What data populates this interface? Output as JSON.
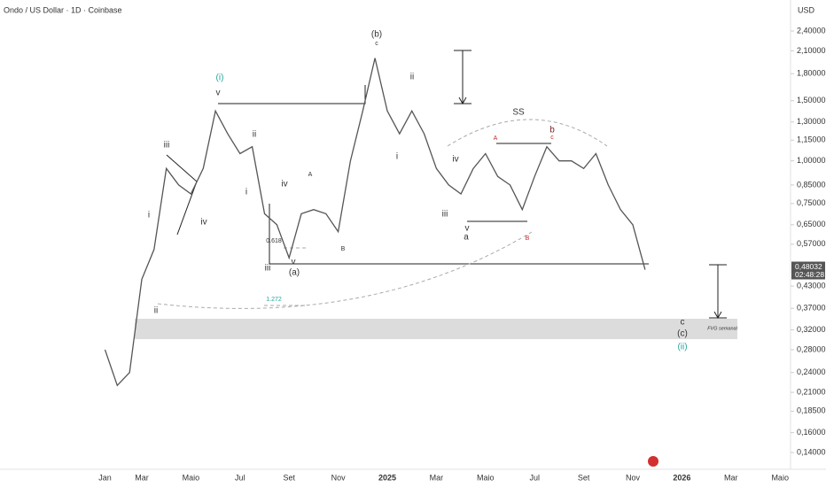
{
  "chart_data": {
    "type": "line",
    "title": "Ondo / US Dollar · 1D · Coinbase",
    "currency": "USD",
    "log_scale": true,
    "color": "#555555",
    "categories": [
      "Jan",
      null,
      null,
      "Mar",
      null,
      null,
      null,
      "Maio",
      null,
      null,
      null,
      "Jul",
      null,
      null,
      null,
      "Set",
      null,
      null,
      null,
      "Nov",
      null,
      null,
      null,
      "2025",
      null,
      null,
      null,
      "Mar",
      null,
      null,
      null,
      "Maio",
      null,
      null,
      null,
      "Jul",
      null,
      null,
      null,
      "Set",
      null,
      null,
      null,
      "Nov",
      null,
      null,
      null,
      "2026",
      null,
      null,
      null,
      "Mar",
      null,
      null,
      null,
      "Maio",
      null
    ],
    "values": [
      0.28,
      0.22,
      0.24,
      0.45,
      0.55,
      0.95,
      0.85,
      0.8,
      0.95,
      1.4,
      1.2,
      1.05,
      1.1,
      0.7,
      0.65,
      0.52,
      0.7,
      0.72,
      0.7,
      0.62,
      1.0,
      1.4,
      2.0,
      1.4,
      1.2,
      1.4,
      1.2,
      0.95,
      0.85,
      0.8,
      0.95,
      1.05,
      0.9,
      0.85,
      0.72,
      0.9,
      1.1,
      1.0,
      1.0,
      0.95,
      1.05,
      0.85,
      0.72,
      0.65,
      0.48,
      null,
      null,
      null,
      null,
      null,
      null,
      null,
      null,
      null,
      null,
      null,
      null
    ],
    "ylim": [
      0.125,
      2.625
    ],
    "yticks": [
      {
        "value": 2.4,
        "label": "2,40000"
      },
      {
        "value": 2.1,
        "label": "2,10000"
      },
      {
        "value": 1.8,
        "label": "1,80000"
      },
      {
        "value": 1.5,
        "label": "1,50000"
      },
      {
        "value": 1.3,
        "label": "1,30000"
      },
      {
        "value": 1.15,
        "label": "1,15000"
      },
      {
        "value": 1.0,
        "label": "1,00000"
      },
      {
        "value": 0.85,
        "label": "0,85000"
      },
      {
        "value": 0.75,
        "label": "0,75000"
      },
      {
        "value": 0.65,
        "label": "0,65000"
      },
      {
        "value": 0.57,
        "label": "0,57000"
      },
      {
        "value": 0.43,
        "label": "0,43000"
      },
      {
        "value": 0.37,
        "label": "0,37000"
      },
      {
        "value": 0.32,
        "label": "0,32000"
      },
      {
        "value": 0.28,
        "label": "0,28000"
      },
      {
        "value": 0.24,
        "label": "0,24000"
      },
      {
        "value": 0.21,
        "label": "0,21000"
      },
      {
        "value": 0.185,
        "label": "0,18500"
      },
      {
        "value": 0.16,
        "label": "0,16000"
      },
      {
        "value": 0.14,
        "label": "0,14000"
      }
    ],
    "last_price": {
      "value": 0.48032,
      "label": "0,48032"
    },
    "countdown": "02:48:28",
    "annotations": [
      {
        "text": "(i)",
        "color": "#26a69a"
      },
      {
        "text": "v",
        "color": "#333333"
      },
      {
        "text": "iii",
        "color": "#333333"
      },
      {
        "text": "ii",
        "color": "#333333"
      },
      {
        "text": "i",
        "color": "#333333"
      },
      {
        "text": "iv",
        "color": "#333333"
      },
      {
        "text": "ii",
        "color": "#333333"
      },
      {
        "text": "i",
        "color": "#333333"
      },
      {
        "text": "iv",
        "color": "#333333"
      },
      {
        "text": "A",
        "color": "#333333"
      },
      {
        "text": "B",
        "color": "#333333"
      },
      {
        "text": "0.618",
        "color": "#333333"
      },
      {
        "text": "v",
        "color": "#333333"
      },
      {
        "text": "iii",
        "color": "#333333"
      },
      {
        "text": "(a)",
        "color": "#333333"
      },
      {
        "text": "(b)",
        "color": "#333333"
      },
      {
        "text": "c",
        "color": "#333333"
      },
      {
        "text": "ii",
        "color": "#333333"
      },
      {
        "text": "i",
        "color": "#333333"
      },
      {
        "text": "iv",
        "color": "#333333"
      },
      {
        "text": "iii",
        "color": "#333333"
      },
      {
        "text": "v",
        "color": "#333333"
      },
      {
        "text": "a",
        "color": "#333333"
      },
      {
        "text": "A",
        "color": "#c62828"
      },
      {
        "text": "B",
        "color": "#c62828"
      },
      {
        "text": "b",
        "color": "#7b1f1f"
      },
      {
        "text": "c",
        "color": "#c62828"
      },
      {
        "text": "SS",
        "color": "#333333"
      },
      {
        "text": "1.272",
        "color": "#26a69a"
      },
      {
        "text": "c",
        "color": "#333333"
      },
      {
        "text": "(c)",
        "color": "#333333"
      },
      {
        "text": "(ii)",
        "color": "#26a69a"
      },
      {
        "text": "FVG semanal",
        "color": "#333333"
      }
    ]
  }
}
